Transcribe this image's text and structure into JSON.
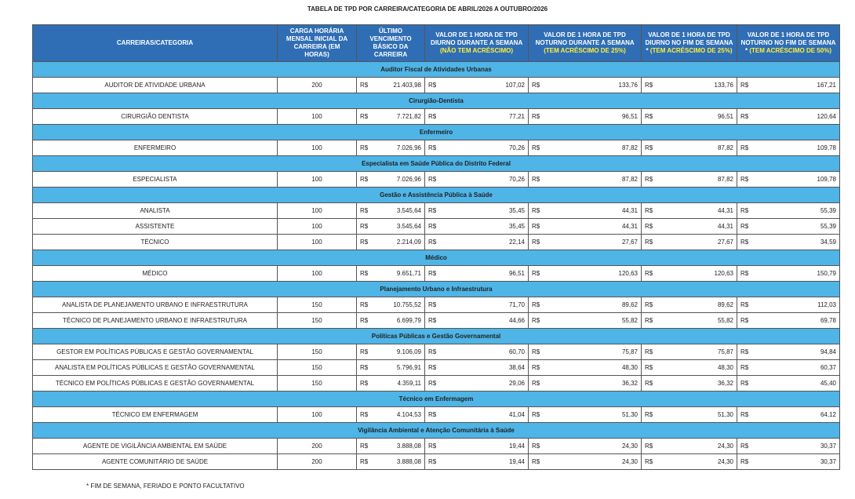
{
  "title": "TABELA DE TPD POR CARREIRA/CATEGORIA DE ABRIL/2026 A OUTUBRO/2026",
  "table": {
    "currency": "R$",
    "headers": [
      {
        "text": "CARREIRAS/CATEGORIA"
      },
      {
        "text": "CARGA HORÁRIA MENSAL INICIAL DA CARREIRA (EM HORAS)"
      },
      {
        "text": "ÚLTIMO VENCIMENTO BÁSICO DA CARREIRA"
      },
      {
        "text": "VALOR DE 1 HORA DE TPD DIURNO DURANTE A SEMANA",
        "note": "(NÃO TEM ACRÉSCIMO)"
      },
      {
        "text": "VALOR DE 1 HORA DE TPD NOTURNO DURANTE A SEMANA",
        "note": "(TEM ACRÉSCIMO DE 25%)"
      },
      {
        "text": "VALOR DE 1 HORA DE TPD DIURNO NO FIM DE SEMANA *",
        "note": "(TEM ACRÉSCIMO DE 25%)"
      },
      {
        "text": "VALOR DE 1 HORA DE TPD NOTURNO NO FIM DE SEMANA *",
        "note": "(TEM ACRÉSCIMO DE 50%)"
      }
    ],
    "sections": [
      {
        "title": "Auditor Fiscal de Atividades Urbanas",
        "rows": [
          [
            "AUDITOR DE ATIVIDADE URBANA",
            200,
            "21.403,98",
            "107,02",
            "133,76",
            "133,76",
            "167,21"
          ]
        ]
      },
      {
        "title": "Cirurgião-Dentista",
        "rows": [
          [
            "CIRURGIÃO DENTISTA",
            100,
            "7.721,82",
            "77,21",
            "96,51",
            "96,51",
            "120,64"
          ]
        ]
      },
      {
        "title": "Enfermeiro",
        "rows": [
          [
            "ENFERMEIRO",
            100,
            "7.026,96",
            "70,26",
            "87,82",
            "87,82",
            "109,78"
          ]
        ]
      },
      {
        "title": "Especialista em Saúde Pública do Distrito Federal",
        "rows": [
          [
            "ESPECIALISTA",
            100,
            "7.026,96",
            "70,26",
            "87,82",
            "87,82",
            "109,78"
          ]
        ]
      },
      {
        "title": "Gestão e Assistência Pública à Saúde",
        "rows": [
          [
            "ANALISTA",
            100,
            "3.545,64",
            "35,45",
            "44,31",
            "44,31",
            "55,39"
          ],
          [
            "ASSISTENTE",
            100,
            "3.545,64",
            "35,45",
            "44,31",
            "44,31",
            "55,39"
          ],
          [
            "TÉCNICO",
            100,
            "2.214,09",
            "22,14",
            "27,67",
            "27,67",
            "34,59"
          ]
        ]
      },
      {
        "title": "Médico",
        "rows": [
          [
            "MÉDICO",
            100,
            "9.651,71",
            "96,51",
            "120,63",
            "120,63",
            "150,79"
          ]
        ]
      },
      {
        "title": "Planejamento Urbano e Infraestrutura",
        "rows": [
          [
            "ANALISTA DE PLANEJAMENTO URBANO E INFRAESTRUTURA",
            150,
            "10.755,52",
            "71,70",
            "89,62",
            "89,62",
            "112,03"
          ],
          [
            "TÉCNICO DE PLANEJAMENTO URBANO E INFRAESTRUTURA",
            150,
            "6.699,79",
            "44,66",
            "55,82",
            "55,82",
            "69,78"
          ]
        ]
      },
      {
        "title": "Políticas Públicas e Gestão Governamental",
        "rows": [
          [
            "GESTOR EM POLÍTICAS PÚBLICAS E GESTÃO GOVERNAMENTAL",
            150,
            "9.106,09",
            "60,70",
            "75,87",
            "75,87",
            "94,84"
          ],
          [
            "ANALISTA EM POLÍTICAS PÚBLICAS E GESTÃO GOVERNAMENTAL",
            150,
            "5.796,91",
            "38,64",
            "48,30",
            "48,30",
            "60,37"
          ],
          [
            "TÉCNICO EM POLÍTICAS PÚBLICAS E GESTÃO GOVERNAMENTAL",
            150,
            "4.359,11",
            "29,06",
            "36,32",
            "36,32",
            "45,40"
          ]
        ]
      },
      {
        "title": "Técnico em Enfermagem",
        "rows": [
          [
            "TÉCNICO EM ENFERMAGEM",
            100,
            "4.104,53",
            "41,04",
            "51,30",
            "51,30",
            "64,12"
          ]
        ]
      },
      {
        "title": "Vigilância Ambiental e Atenção Comunitária à Saúde",
        "rows": [
          [
            "AGENTE DE VIGILÂNCIA AMBIENTAL EM SAÚDE",
            200,
            "3.888,08",
            "19,44",
            "24,30",
            "24,30",
            "30,37"
          ],
          [
            "AGENTE COMUNITÁRIO DE SAÚDE",
            200,
            "3.888,08",
            "19,44",
            "24,30",
            "24,30",
            "30,37"
          ]
        ]
      }
    ]
  },
  "footnote": "* FIM DE SEMANA, FERIADO E PONTO FACULTATIVO"
}
